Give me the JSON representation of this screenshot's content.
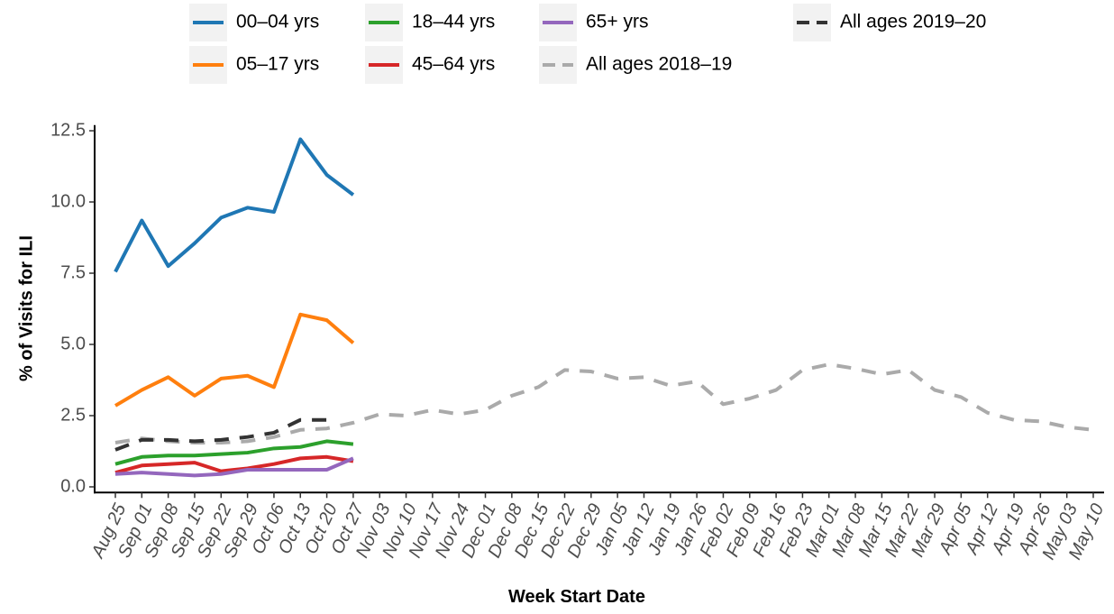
{
  "chart_data": {
    "type": "line",
    "xlabel": "Week Start Date",
    "ylabel": "% of Visits for ILI",
    "categories": [
      "Aug 25",
      "Sep 01",
      "Sep 08",
      "Sep 15",
      "Sep 22",
      "Sep 29",
      "Oct 06",
      "Oct 13",
      "Oct 20",
      "Oct 27",
      "Nov 03",
      "Nov 10",
      "Nov 17",
      "Nov 24",
      "Dec 01",
      "Dec 08",
      "Dec 15",
      "Dec 22",
      "Dec 29",
      "Jan 05",
      "Jan 12",
      "Jan 19",
      "Jan 26",
      "Feb 02",
      "Feb 09",
      "Feb 16",
      "Feb 23",
      "Mar 01",
      "Mar 08",
      "Mar 15",
      "Mar 22",
      "Mar 29",
      "Apr 05",
      "Apr 12",
      "Apr 19",
      "Apr 26",
      "May 03",
      "May 10"
    ],
    "ylim": [
      -0.2,
      12.7
    ],
    "yticks": [
      {
        "value": 0,
        "label": "0.0"
      },
      2.5,
      {
        "value": 5,
        "label": "5.0"
      },
      7.5,
      {
        "value": 10,
        "label": "10.0"
      },
      12.5
    ],
    "grid": false,
    "legend": "top",
    "series": [
      {
        "name": "00‒04 yrs",
        "color": "#1f77b4",
        "dashed": false,
        "values": [
          7.55,
          9.35,
          7.75,
          8.55,
          9.45,
          9.8,
          9.65,
          12.2,
          10.95,
          10.25,
          null,
          null,
          null,
          null,
          null,
          null,
          null,
          null,
          null,
          null,
          null,
          null,
          null,
          null,
          null,
          null,
          null,
          null,
          null,
          null,
          null,
          null,
          null,
          null,
          null,
          null,
          null,
          null
        ]
      },
      {
        "name": "05‒17 yrs",
        "color": "#ff7f0e",
        "dashed": false,
        "values": [
          2.85,
          3.4,
          3.85,
          3.2,
          3.8,
          3.9,
          3.5,
          6.05,
          5.85,
          5.05,
          null,
          null,
          null,
          null,
          null,
          null,
          null,
          null,
          null,
          null,
          null,
          null,
          null,
          null,
          null,
          null,
          null,
          null,
          null,
          null,
          null,
          null,
          null,
          null,
          null,
          null,
          null,
          null
        ]
      },
      {
        "name": "18‒44 yrs",
        "color": "#2ca02c",
        "dashed": false,
        "values": [
          0.8,
          1.05,
          1.1,
          1.1,
          1.15,
          1.2,
          1.35,
          1.4,
          1.6,
          1.5,
          null,
          null,
          null,
          null,
          null,
          null,
          null,
          null,
          null,
          null,
          null,
          null,
          null,
          null,
          null,
          null,
          null,
          null,
          null,
          null,
          null,
          null,
          null,
          null,
          null,
          null,
          null,
          null
        ]
      },
      {
        "name": "45‒64 yrs",
        "color": "#d62728",
        "dashed": false,
        "values": [
          0.5,
          0.75,
          0.8,
          0.85,
          0.55,
          0.65,
          0.8,
          1.0,
          1.05,
          0.9,
          null,
          null,
          null,
          null,
          null,
          null,
          null,
          null,
          null,
          null,
          null,
          null,
          null,
          null,
          null,
          null,
          null,
          null,
          null,
          null,
          null,
          null,
          null,
          null,
          null,
          null,
          null,
          null
        ]
      },
      {
        "name": "65+ yrs",
        "color": "#9467bd",
        "dashed": false,
        "values": [
          0.45,
          0.5,
          0.45,
          0.4,
          0.45,
          0.6,
          0.6,
          0.6,
          0.6,
          1.0,
          null,
          null,
          null,
          null,
          null,
          null,
          null,
          null,
          null,
          null,
          null,
          null,
          null,
          null,
          null,
          null,
          null,
          null,
          null,
          null,
          null,
          null,
          null,
          null,
          null,
          null,
          null,
          null
        ]
      },
      {
        "name": "All ages 2018‒19",
        "color": "#aaaaaa",
        "dashed": true,
        "values": [
          1.55,
          1.7,
          1.6,
          1.55,
          1.55,
          1.6,
          1.75,
          2.0,
          2.05,
          2.25,
          2.55,
          2.5,
          2.7,
          2.55,
          2.7,
          3.2,
          3.5,
          4.1,
          4.05,
          3.8,
          3.85,
          3.55,
          3.7,
          2.9,
          3.1,
          3.4,
          4.1,
          4.3,
          4.15,
          3.95,
          4.1,
          3.4,
          3.15,
          2.6,
          2.35,
          2.3,
          2.1,
          2.0
        ]
      },
      {
        "name": "All ages 2019‒20",
        "color": "#333333",
        "dashed": true,
        "values": [
          1.3,
          1.65,
          1.65,
          1.6,
          1.65,
          1.75,
          1.9,
          2.35,
          2.35,
          null,
          null,
          null,
          null,
          null,
          null,
          null,
          null,
          null,
          null,
          null,
          null,
          null,
          null,
          null,
          null,
          null,
          null,
          null,
          null,
          null,
          null,
          null,
          null,
          null,
          null,
          null,
          null,
          null
        ]
      }
    ]
  }
}
